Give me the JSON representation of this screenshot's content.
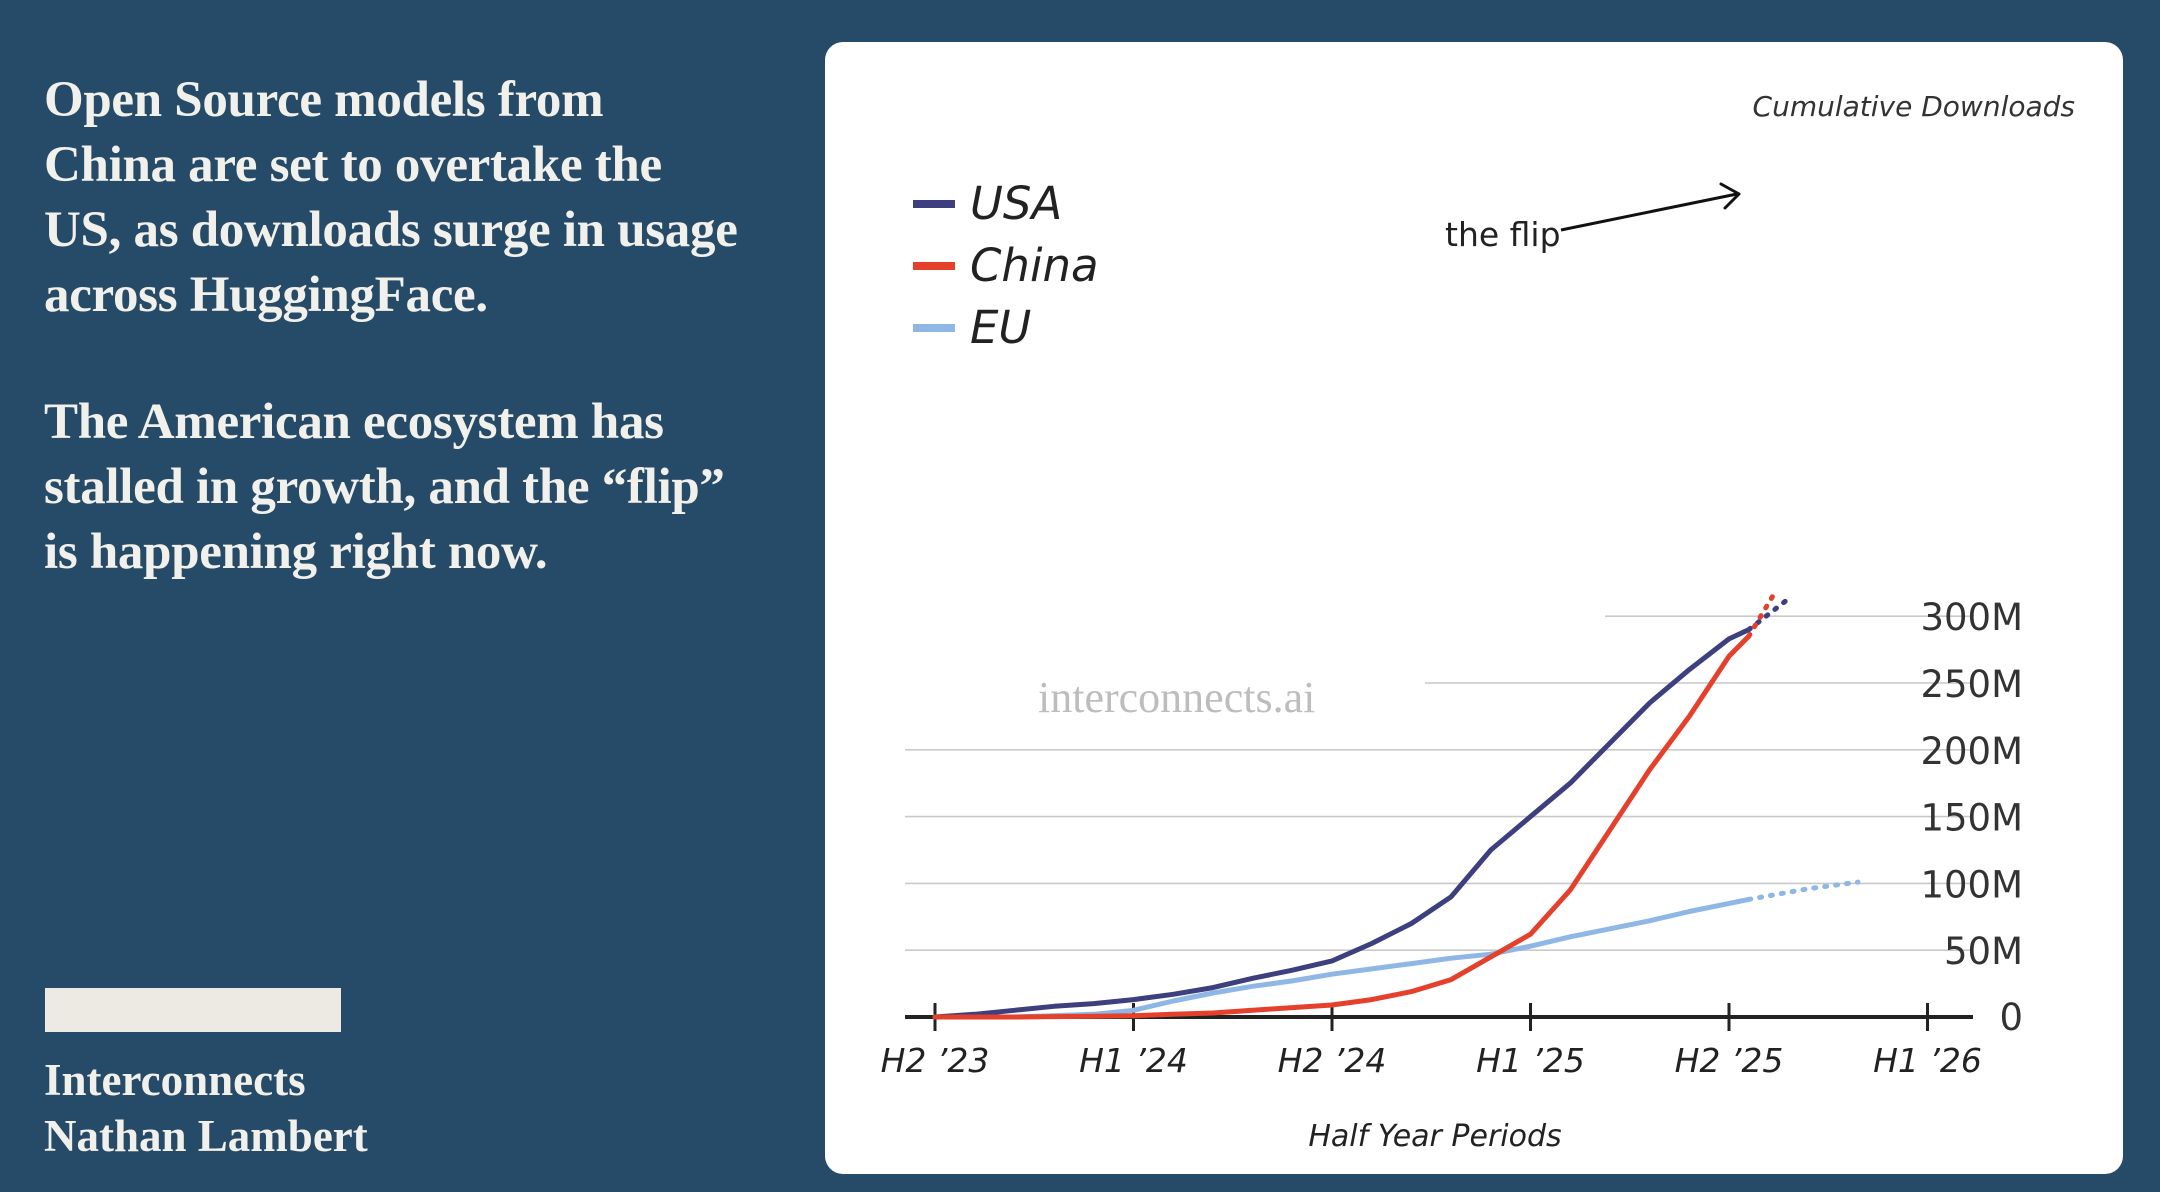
{
  "headline": {
    "paragraph1": "Open Source models from China are set to overtake the US, as downloads surge in usage across HuggingFace.",
    "paragraph2": "The American ecosystem has stalled in growth, and the “flip” is happening right now."
  },
  "byline": {
    "publication": "Interconnects",
    "author": "Nathan Lambert"
  },
  "colors": {
    "background": "#264b69",
    "usa": "#3d3f7e",
    "china": "#e4402c",
    "eu": "#8fb7e6"
  },
  "chart_data": {
    "type": "line",
    "title": "Cumulative Downloads",
    "xlabel": "Half Year Periods",
    "ylabel": "",
    "x_ticks": [
      "H2 ’23",
      "H1 ’24",
      "H2 ’24",
      "H1 ’25",
      "H2 ’25",
      "H1 ’26"
    ],
    "y_ticks": [
      "0",
      "50M",
      "100M",
      "150M",
      "200M",
      "250M",
      "300M"
    ],
    "xlim": [
      0,
      5
    ],
    "ylim": [
      0,
      300
    ],
    "y_unit": "M",
    "grid": true,
    "legend_position": "top-left",
    "watermark": "interconnects.ai",
    "annotation": {
      "text": "the flip"
    },
    "series": [
      {
        "name": "USA",
        "key": "usa",
        "x": [
          0,
          0.2,
          0.4,
          0.6,
          0.8,
          1.0,
          1.2,
          1.4,
          1.6,
          1.8,
          2.0,
          2.2,
          2.4,
          2.6,
          2.8,
          3.0,
          3.2,
          3.4,
          3.6,
          3.8,
          4.0,
          4.1
        ],
        "y": [
          0,
          2,
          5,
          8,
          10,
          13,
          17,
          22,
          29,
          35,
          42,
          55,
          70,
          90,
          125,
          150,
          175,
          205,
          235,
          260,
          283,
          290
        ],
        "projected_x": [
          4.1,
          4.3
        ],
        "projected_y": [
          290,
          313
        ]
      },
      {
        "name": "China",
        "key": "china",
        "x": [
          0,
          0.4,
          0.8,
          1.0,
          1.2,
          1.4,
          1.6,
          1.8,
          2.0,
          2.2,
          2.4,
          2.6,
          2.8,
          3.0,
          3.2,
          3.4,
          3.6,
          3.8,
          4.0,
          4.1
        ],
        "y": [
          0,
          0,
          0.5,
          1,
          2,
          3,
          5,
          7,
          9,
          13,
          19,
          28,
          45,
          62,
          95,
          140,
          185,
          225,
          270,
          285
        ],
        "projected_x": [
          4.1,
          4.22
        ],
        "projected_y": [
          285,
          315
        ]
      },
      {
        "name": "EU",
        "key": "eu",
        "x": [
          0,
          0.4,
          0.8,
          1.0,
          1.2,
          1.4,
          1.6,
          1.8,
          2.0,
          2.2,
          2.4,
          2.6,
          2.8,
          3.0,
          3.2,
          3.4,
          3.6,
          3.8,
          4.0,
          4.1
        ],
        "y": [
          0,
          0,
          2,
          5,
          12,
          18,
          23,
          27,
          32,
          36,
          40,
          44,
          47,
          53,
          60,
          66,
          72,
          79,
          85,
          88
        ],
        "projected_x": [
          4.1,
          4.4,
          4.65
        ],
        "projected_y": [
          88,
          96,
          101
        ]
      }
    ]
  }
}
